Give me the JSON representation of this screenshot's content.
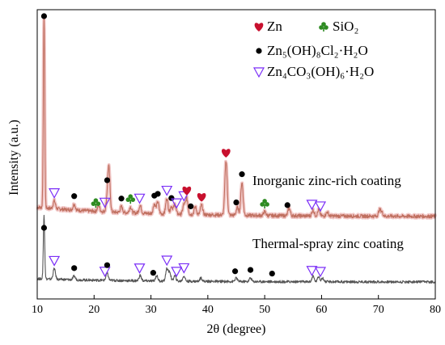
{
  "chart_data": {
    "type": "line",
    "xlabel": "2θ (degree)",
    "ylabel": "Intensity (a.u.)",
    "xlim": [
      10,
      80
    ],
    "x_ticks": [
      "10",
      "20",
      "30",
      "40",
      "50",
      "60",
      "70",
      "80"
    ],
    "grid": false,
    "legend": {
      "placement": "top-right",
      "entries": [
        {
          "symbol": "heart",
          "color": "#c8102e",
          "label": "Zn"
        },
        {
          "symbol": "club",
          "color": "#2e8b22",
          "label": "SiO₂"
        },
        {
          "symbol": "dot",
          "color": "#000000",
          "label": "Zn₅(OH)₈Cl₂·H₂O"
        },
        {
          "symbol": "triangle",
          "color": "#7b2ff7",
          "label": "Zn₄CO₃(OH)₆·H₂O"
        }
      ]
    },
    "series": [
      {
        "name": "Inorganic zinc-rich coating",
        "color": "#c07060",
        "baseline": 0.08,
        "peaks": [
          {
            "x": 11.2,
            "h": 1.0
          },
          {
            "x": 13.0,
            "h": 0.04
          },
          {
            "x": 16.5,
            "h": 0.03
          },
          {
            "x": 20.8,
            "h": 0.03
          },
          {
            "x": 22.3,
            "h": 0.05
          },
          {
            "x": 22.6,
            "h": 0.22
          },
          {
            "x": 24.8,
            "h": 0.03
          },
          {
            "x": 26.4,
            "h": 0.03
          },
          {
            "x": 28.1,
            "h": 0.04
          },
          {
            "x": 30.6,
            "h": 0.05
          },
          {
            "x": 31.2,
            "h": 0.06
          },
          {
            "x": 32.8,
            "h": 0.08
          },
          {
            "x": 33.6,
            "h": 0.04
          },
          {
            "x": 34.2,
            "h": 0.05
          },
          {
            "x": 35.8,
            "h": 0.05
          },
          {
            "x": 36.3,
            "h": 0.08
          },
          {
            "x": 37.8,
            "h": 0.04
          },
          {
            "x": 38.9,
            "h": 0.05
          },
          {
            "x": 43.2,
            "h": 0.28
          },
          {
            "x": 45.2,
            "h": 0.04
          },
          {
            "x": 46.0,
            "h": 0.17
          },
          {
            "x": 50.0,
            "h": 0.02
          },
          {
            "x": 54.3,
            "h": 0.04
          },
          {
            "x": 58.5,
            "h": 0.03
          },
          {
            "x": 59.5,
            "h": 0.03
          },
          {
            "x": 61.0,
            "h": 0.02
          },
          {
            "x": 70.2,
            "h": 0.03
          },
          {
            "x": 70.6,
            "h": 0.02
          }
        ]
      },
      {
        "name": "Thermal-spray zinc coating",
        "color": "#555555",
        "baseline": 0.03,
        "peaks": [
          {
            "x": 11.2,
            "h": 0.36
          },
          {
            "x": 13.0,
            "h": 0.06
          },
          {
            "x": 16.5,
            "h": 0.02
          },
          {
            "x": 22.3,
            "h": 0.04
          },
          {
            "x": 28.1,
            "h": 0.03
          },
          {
            "x": 31.0,
            "h": 0.03
          },
          {
            "x": 32.8,
            "h": 0.07
          },
          {
            "x": 33.3,
            "h": 0.05
          },
          {
            "x": 34.2,
            "h": 0.03
          },
          {
            "x": 35.8,
            "h": 0.03
          },
          {
            "x": 38.8,
            "h": 0.02
          },
          {
            "x": 45.0,
            "h": 0.02
          },
          {
            "x": 47.5,
            "h": 0.02
          },
          {
            "x": 58.5,
            "h": 0.03
          },
          {
            "x": 59.5,
            "h": 0.03
          },
          {
            "x": 60.2,
            "h": 0.02
          }
        ]
      }
    ],
    "markers": {
      "upper": [
        {
          "x": 11.2,
          "s": "dot"
        },
        {
          "x": 13.0,
          "s": "triangle"
        },
        {
          "x": 16.5,
          "s": "dot"
        },
        {
          "x": 20.3,
          "s": "club"
        },
        {
          "x": 22.3,
          "s": "dot"
        },
        {
          "x": 21.9,
          "s": "triangle"
        },
        {
          "x": 24.8,
          "s": "dot"
        },
        {
          "x": 26.4,
          "s": "club"
        },
        {
          "x": 28.0,
          "s": "triangle"
        },
        {
          "x": 30.6,
          "s": "dot"
        },
        {
          "x": 31.2,
          "s": "dot"
        },
        {
          "x": 32.8,
          "s": "triangle"
        },
        {
          "x": 33.6,
          "s": "dot"
        },
        {
          "x": 34.5,
          "s": "triangle"
        },
        {
          "x": 35.8,
          "s": "triangle"
        },
        {
          "x": 36.3,
          "s": "heart"
        },
        {
          "x": 37.0,
          "s": "dot"
        },
        {
          "x": 38.9,
          "s": "heart"
        },
        {
          "x": 43.2,
          "s": "heart"
        },
        {
          "x": 45.0,
          "s": "dot"
        },
        {
          "x": 46.0,
          "s": "dot"
        },
        {
          "x": 50.0,
          "s": "club"
        },
        {
          "x": 54.0,
          "s": "dot"
        },
        {
          "x": 58.3,
          "s": "triangle"
        },
        {
          "x": 59.8,
          "s": "triangle"
        }
      ],
      "lower": [
        {
          "x": 11.2,
          "s": "dot"
        },
        {
          "x": 13.0,
          "s": "triangle"
        },
        {
          "x": 16.5,
          "s": "dot"
        },
        {
          "x": 21.9,
          "s": "triangle"
        },
        {
          "x": 22.3,
          "s": "dot"
        },
        {
          "x": 28.0,
          "s": "triangle"
        },
        {
          "x": 30.4,
          "s": "dot"
        },
        {
          "x": 32.8,
          "s": "triangle"
        },
        {
          "x": 34.5,
          "s": "triangle"
        },
        {
          "x": 35.8,
          "s": "triangle"
        },
        {
          "x": 44.8,
          "s": "dot"
        },
        {
          "x": 47.5,
          "s": "dot"
        },
        {
          "x": 51.3,
          "s": "dot"
        },
        {
          "x": 58.3,
          "s": "triangle"
        },
        {
          "x": 59.8,
          "s": "triangle"
        }
      ]
    }
  }
}
